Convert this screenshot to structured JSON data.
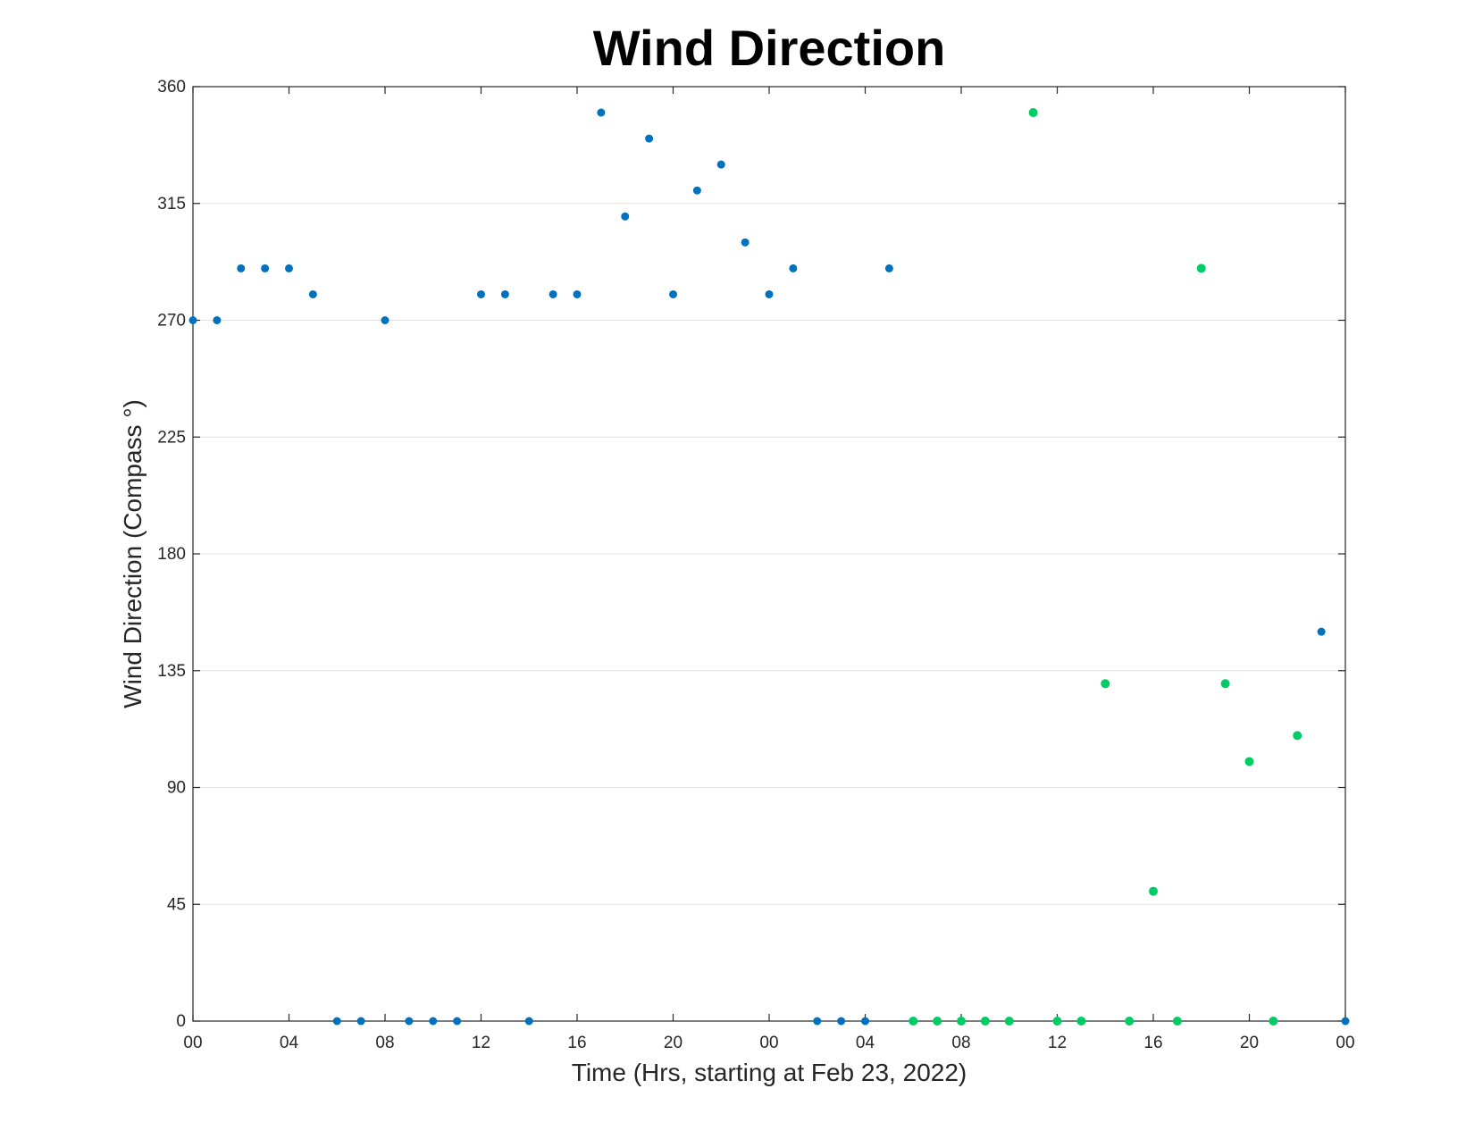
{
  "chart_data": {
    "type": "scatter",
    "title": "Wind Direction",
    "xlabel": "Time (Hrs, starting at Feb 23, 2022)",
    "ylabel": "Wind Direction (Compass °)",
    "xlim": [
      0,
      48
    ],
    "ylim": [
      0,
      360
    ],
    "grid": true,
    "x_tick_values": [
      0,
      4,
      8,
      12,
      16,
      20,
      24,
      28,
      32,
      36,
      40,
      44,
      48
    ],
    "x_tick_labels": [
      "00",
      "04",
      "08",
      "12",
      "16",
      "20",
      "00",
      "04",
      "08",
      "12",
      "16",
      "20",
      "00"
    ],
    "y_tick_values": [
      0,
      45,
      90,
      135,
      180,
      225,
      270,
      315,
      360
    ],
    "y_tick_labels": [
      "0",
      "45",
      "90",
      "135",
      "180",
      "225",
      "270",
      "315",
      "360"
    ],
    "series": [
      {
        "color": "#0072bd",
        "x": [
          0,
          1,
          2,
          3,
          4,
          5,
          6,
          7,
          8,
          9,
          10,
          11,
          12,
          13,
          14,
          15,
          16,
          17,
          18,
          19,
          20,
          21,
          22,
          23,
          24,
          25,
          26,
          27,
          28,
          29,
          47,
          48
        ],
        "y": [
          270,
          270,
          290,
          290,
          290,
          280,
          0,
          0,
          270,
          0,
          0,
          0,
          280,
          280,
          0,
          280,
          280,
          350,
          310,
          340,
          280,
          320,
          330,
          300,
          280,
          290,
          0,
          0,
          0,
          290,
          150,
          0
        ]
      },
      {
        "color": "#00cc66",
        "x": [
          30,
          31,
          32,
          33,
          34,
          35,
          36,
          37,
          38,
          39,
          40,
          41,
          42,
          43,
          44,
          45,
          46
        ],
        "y": [
          0,
          0,
          0,
          0,
          0,
          350,
          0,
          0,
          130,
          0,
          50,
          0,
          290,
          130,
          100,
          0,
          110
        ]
      }
    ]
  }
}
